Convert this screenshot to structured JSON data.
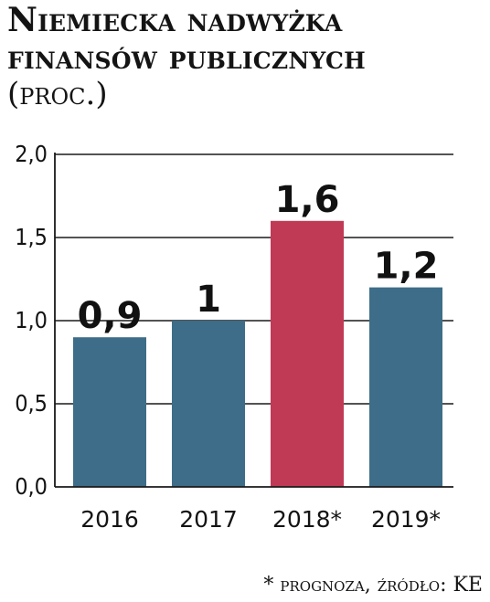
{
  "title_lines": [
    "Niemiecka nadwyżka",
    "finansów publicznych"
  ],
  "subtitle": "(proc.)",
  "footnote": "* prognoza, źródło: KE",
  "colors": {
    "actual": "#3d6d88",
    "forecast": "#c13a55",
    "grid": "#1a1a1a"
  },
  "chart_data": {
    "type": "bar",
    "title": "Niemiecka nadwyżka finansów publicznych",
    "ylabel": "(proc.)",
    "categories": [
      "2016",
      "2017",
      "2018*",
      "2019*"
    ],
    "values": [
      0.9,
      1,
      1.6,
      1.2
    ],
    "value_labels": [
      "0,9",
      "1",
      "1,6",
      "1,2"
    ],
    "highlight": [
      false,
      false,
      true,
      false
    ],
    "ylim": [
      0,
      2.0
    ],
    "yticks": [
      0,
      0.5,
      1.0,
      1.5,
      2.0
    ],
    "ytick_labels": [
      "0,0",
      "0,5",
      "1,0",
      "1,5",
      "2,0"
    ],
    "grid": true
  }
}
